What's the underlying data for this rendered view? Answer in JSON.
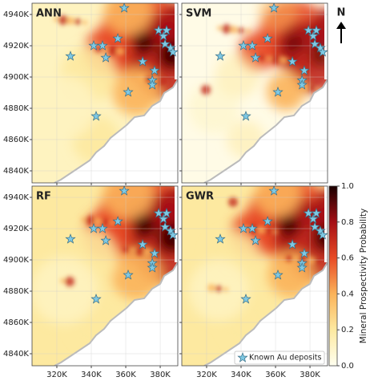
{
  "chart_data": {
    "type": "map",
    "panels": [
      "ANN",
      "SVM",
      "RF",
      "GWR"
    ],
    "xlim": [
      305600,
      390200
    ],
    "ylim": [
      4832300,
      4947200
    ],
    "xticks": [
      {
        "value": 320000,
        "label": "320K"
      },
      {
        "value": 340000,
        "label": "340K"
      },
      {
        "value": 360000,
        "label": "360K"
      },
      {
        "value": 380000,
        "label": "380K"
      }
    ],
    "yticks": [
      {
        "value": 4840000,
        "label": "4840K"
      },
      {
        "value": 4860000,
        "label": "4860K"
      },
      {
        "value": 4880000,
        "label": "4880K"
      },
      {
        "value": 4900000,
        "label": "4900K"
      },
      {
        "value": 4920000,
        "label": "4920K"
      },
      {
        "value": 4940000,
        "label": "4940K"
      }
    ],
    "grid": true,
    "deposits": {
      "name": "Known Au deposits",
      "color": "#7ec8e3",
      "x": [
        359100,
        355400,
        341400,
        346500,
        348400,
        327900,
        369800,
        379100,
        381900,
        383700,
        382800,
        386000,
        387400,
        376700,
        375400,
        375400,
        361400,
        342800
      ],
      "y": [
        4944100,
        4924600,
        4920000,
        4920000,
        4912300,
        4913300,
        4909800,
        4929800,
        4926200,
        4929800,
        4921000,
        4918500,
        4915900,
        4904100,
        4897900,
        4894900,
        4890300,
        4874900
      ]
    },
    "colorbar": {
      "label": "Mineral Prospectivity Probability",
      "lim": [
        0,
        1
      ],
      "ticks": [
        {
          "value": 0,
          "label": "0.0"
        },
        0.2,
        0.4,
        0.6,
        0.8,
        {
          "value": 1,
          "label": "1.0"
        }
      ]
    },
    "north_label": "N"
  }
}
